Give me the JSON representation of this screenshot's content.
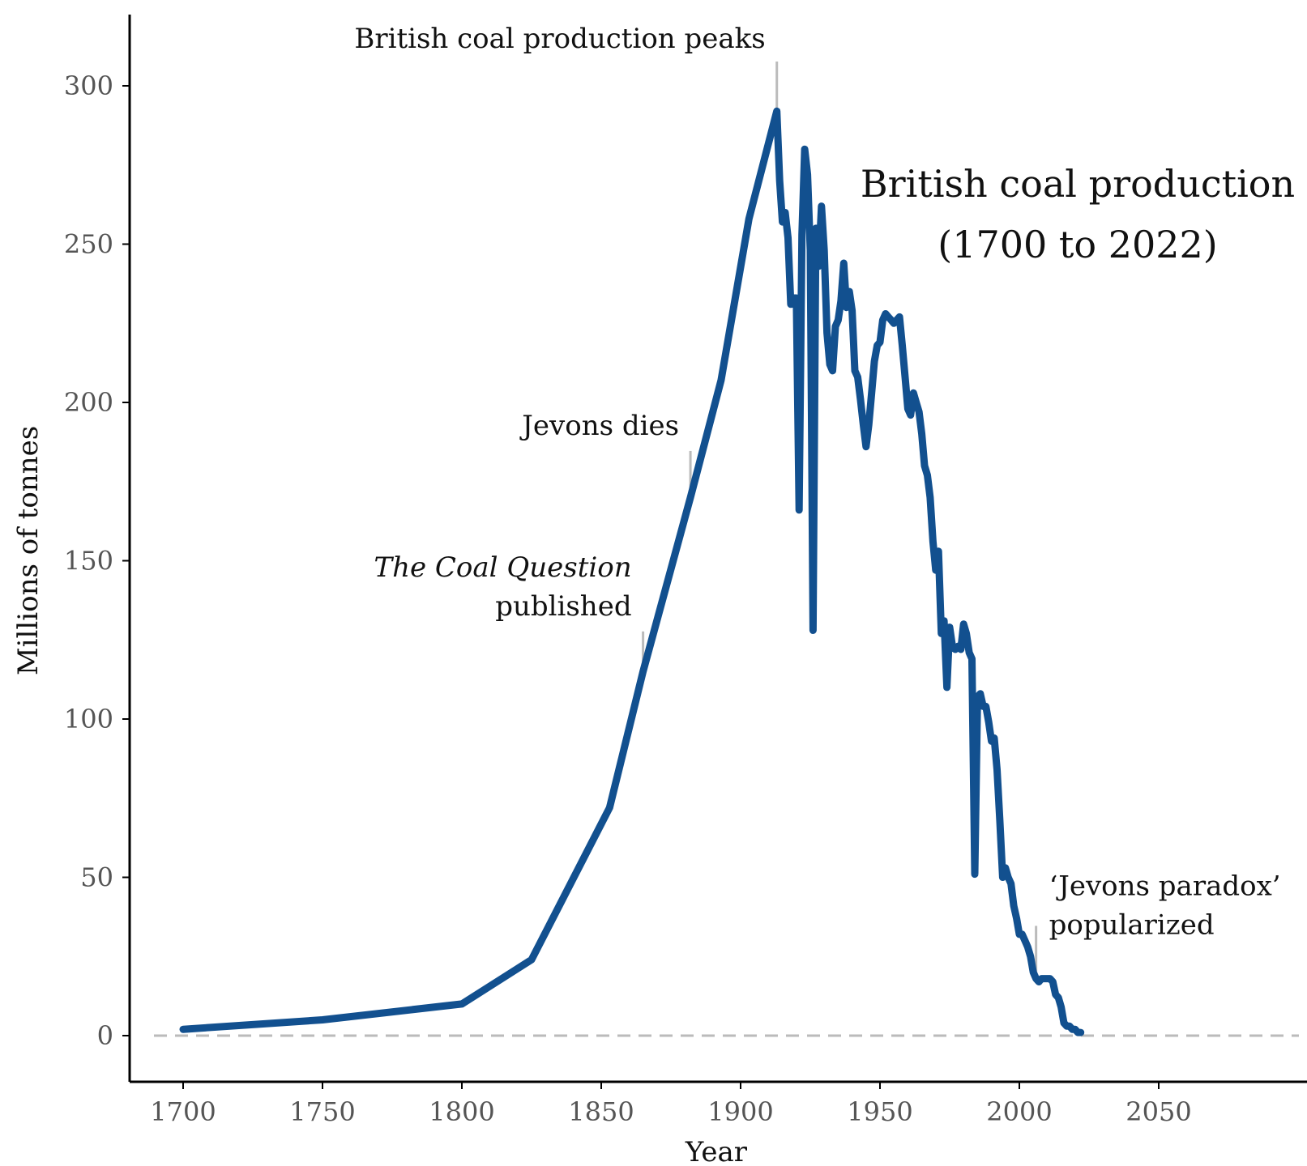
{
  "chart_data": {
    "type": "line",
    "title": "British coal production",
    "subtitle": "(1700 to 2022)",
    "xlabel": "Year",
    "ylabel": "Millions of tonnes",
    "xlim": [
      1681,
      2100
    ],
    "ylim": [
      -15,
      322
    ],
    "xticks": [
      1700,
      1750,
      1800,
      1850,
      1900,
      1950,
      2000,
      2050
    ],
    "yticks": [
      0,
      50,
      100,
      150,
      200,
      250,
      300
    ],
    "grid": false,
    "line_color": "#12508f",
    "marker_color": "#bbbbbb",
    "baseline_color": "#bbbbbb",
    "series": [
      {
        "name": "",
        "x": [
          1700,
          1750,
          1800,
          1825,
          1853,
          1865,
          1882,
          1893,
          1903,
          1913,
          1914,
          1915,
          1916,
          1917,
          1918,
          1919,
          1920,
          1921,
          1922,
          1923,
          1924,
          1925,
          1926,
          1927,
          1928,
          1929,
          1930,
          1931,
          1932,
          1933,
          1934,
          1935,
          1936,
          1937,
          1938,
          1939,
          1940,
          1941,
          1942,
          1943,
          1944,
          1945,
          1946,
          1947,
          1948,
          1949,
          1950,
          1951,
          1952,
          1953,
          1954,
          1955,
          1956,
          1957,
          1958,
          1959,
          1960,
          1961,
          1962,
          1963,
          1964,
          1965,
          1966,
          1967,
          1968,
          1969,
          1970,
          1971,
          1972,
          1973,
          1974,
          1975,
          1976,
          1977,
          1978,
          1979,
          1980,
          1981,
          1982,
          1983,
          1984,
          1985,
          1986,
          1987,
          1988,
          1989,
          1990,
          1991,
          1992,
          1993,
          1994,
          1995,
          1996,
          1997,
          1998,
          1999,
          2000,
          2001,
          2002,
          2003,
          2004,
          2005,
          2006,
          2007,
          2008,
          2009,
          2010,
          2011,
          2012,
          2013,
          2014,
          2015,
          2016,
          2017,
          2018,
          2019,
          2020,
          2021,
          2022
        ],
        "y": [
          2,
          5,
          10,
          24,
          72,
          115,
          170,
          207,
          258,
          292,
          270,
          257,
          260,
          252,
          231,
          233,
          233,
          166,
          253,
          280,
          272,
          248,
          128,
          255,
          243,
          262,
          248,
          222,
          212,
          210,
          224,
          226,
          232,
          244,
          230,
          235,
          229,
          210,
          208,
          201,
          193,
          186,
          193,
          203,
          213,
          218,
          219,
          226,
          228,
          227,
          226,
          225,
          226,
          227,
          218,
          208,
          198,
          196,
          203,
          200,
          197,
          190,
          180,
          177,
          170,
          156,
          147,
          153,
          127,
          131,
          110,
          129,
          123,
          122,
          123,
          122,
          130,
          127,
          121,
          119,
          51,
          107,
          108,
          104,
          104,
          99,
          93,
          94,
          84,
          68,
          50,
          53,
          50,
          48,
          41,
          37,
          32,
          32,
          30,
          28,
          25,
          20,
          18,
          17,
          18,
          18,
          18,
          18,
          17,
          13,
          12,
          9,
          4,
          3,
          3,
          2,
          2,
          1,
          1
        ]
      }
    ],
    "annotations": [
      {
        "lines": [
          "British coal production peaks"
        ],
        "italic": [
          false
        ],
        "x": 1913,
        "y": 300
      },
      {
        "lines": [
          "Jevons dies"
        ],
        "italic": [
          false
        ],
        "x": 1882,
        "y": 177
      },
      {
        "lines": [
          "The Coal Question",
          "published"
        ],
        "italic": [
          true,
          false
        ],
        "x": 1865,
        "y": 120
      },
      {
        "lines": [
          "‘Jevons   paradox’",
          "popularized"
        ],
        "italic": [
          false,
          false
        ],
        "x": 2006,
        "y": 27
      }
    ]
  }
}
